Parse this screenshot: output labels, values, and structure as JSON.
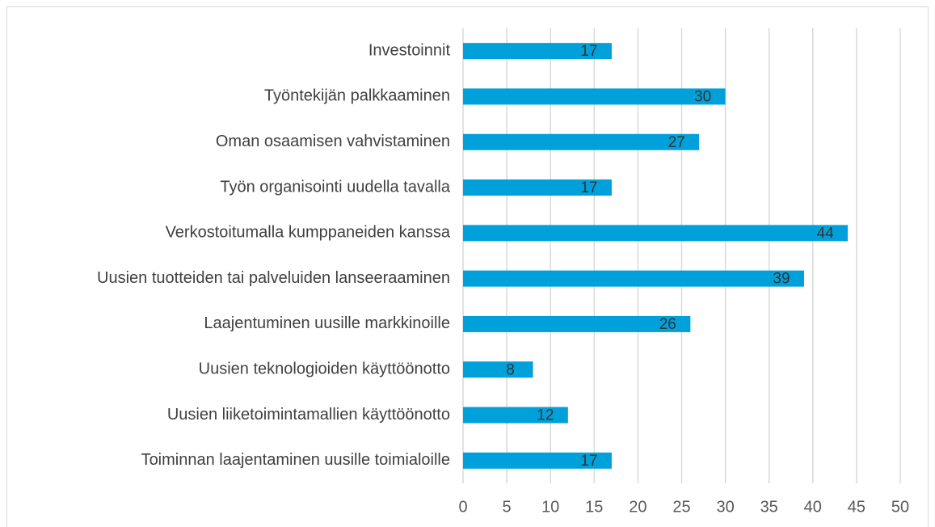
{
  "chart_data": {
    "type": "hbar",
    "categories": [
      "Investoinnit",
      "Työntekijän palkkaaminen",
      "Oman osaamisen vahvistaminen",
      "Työn organisointi uudella tavalla",
      "Verkostoitumalla kumppaneiden kanssa",
      "Uusien tuotteiden tai palveluiden lanseeraaminen",
      "Laajentuminen uusille markkinoille",
      "Uusien teknologioiden käyttöönotto",
      "Uusien liiketoimintamallien käyttöönotto",
      "Toiminnan laajentaminen uusille toimialoille"
    ],
    "values": [
      17,
      30,
      27,
      17,
      44,
      39,
      26,
      8,
      12,
      17
    ],
    "color": "#00a1da",
    "xlim": [
      0,
      50
    ],
    "xticks": [
      0,
      5,
      10,
      15,
      20,
      25,
      30,
      35,
      40,
      45,
      50
    ],
    "grid": true
  }
}
